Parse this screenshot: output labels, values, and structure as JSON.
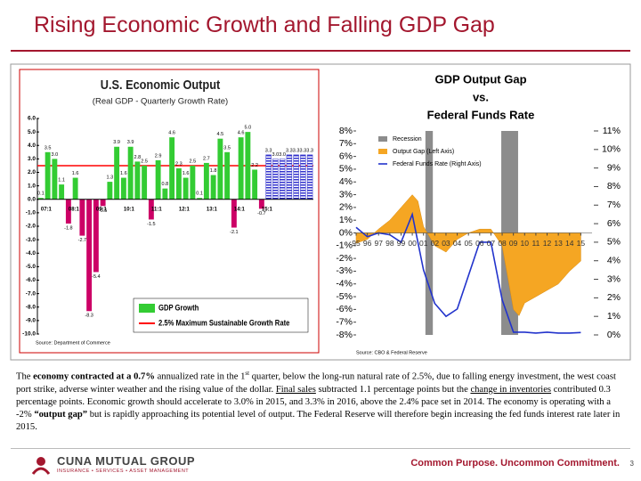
{
  "header": {
    "title": "Rising Economic Growth and Falling GDP Gap"
  },
  "chart_data": [
    {
      "type": "bar",
      "title": "U.S. Economic Output",
      "subtitle": "(Real GDP - Quarterly Growth Rate)",
      "source": "Source: Department of Commerce",
      "categories": [
        "07:1",
        null,
        null,
        null,
        "08:1",
        null,
        null,
        null,
        "09:1",
        null,
        null,
        null,
        "10:1",
        null,
        null,
        null,
        "11:1",
        null,
        null,
        null,
        "12:1",
        null,
        null,
        null,
        "13:1",
        null,
        null,
        null,
        "14:1",
        null,
        null,
        null,
        "15:1",
        null,
        null,
        null,
        null,
        null,
        null,
        null
      ],
      "series": [
        {
          "name": "GDP Growth",
          "color": "#33cc33",
          "negative_color": "#cc0066",
          "values": [
            0.1,
            3.5,
            3.0,
            1.1,
            -1.8,
            1.6,
            -2.7,
            -8.3,
            -5.4,
            -0.5,
            1.3,
            3.9,
            1.6,
            3.9,
            2.8,
            2.5,
            -1.5,
            2.9,
            0.8,
            4.6,
            2.3,
            1.6,
            2.5,
            0.1,
            2.7,
            1.8,
            4.5,
            3.5,
            -2.1,
            4.6,
            5.0,
            2.2,
            -0.7,
            null,
            null,
            null,
            null,
            null,
            null,
            null
          ],
          "value_labels": [
            "0.1",
            "3.5",
            "3.0",
            "1.1",
            "-1.8",
            "1.6",
            "-2.7",
            "-8.3",
            "-5.4",
            "-0.5",
            "1.3",
            "3.9",
            "1.6",
            "3.9",
            "2.8",
            "2.5",
            "-1.5",
            "2.9",
            "0.8",
            "4.6",
            "2.3",
            "1.6",
            "2.5",
            "0.1",
            "2.7",
            "1.8",
            "4.5",
            "3.5",
            "-2.1",
            "4.6",
            "5.0",
            "2.2",
            "-0.7",
            null,
            null,
            null,
            null,
            null,
            null,
            null
          ]
        },
        {
          "color": "#3333cc",
          "values": [
            null,
            null,
            null,
            null,
            null,
            null,
            null,
            null,
            null,
            null,
            null,
            null,
            null,
            null,
            null,
            null,
            null,
            null,
            null,
            null,
            null,
            null,
            null,
            null,
            null,
            null,
            null,
            null,
            null,
            null,
            null,
            null,
            null,
            3.3,
            3.0,
            3.0,
            3.3,
            3.3,
            3.3,
            3.3
          ],
          "value_labels": [
            null,
            null,
            null,
            null,
            null,
            null,
            null,
            null,
            null,
            null,
            null,
            null,
            null,
            null,
            null,
            null,
            null,
            null,
            null,
            null,
            null,
            null,
            null,
            null,
            null,
            null,
            null,
            null,
            null,
            null,
            null,
            null,
            null,
            "3.3",
            "3.0",
            "3.0",
            "3.3",
            "3.3",
            "3.3",
            "3.3"
          ]
        }
      ],
      "reference": {
        "name": "2.5% Maximum Sustainable Growth Rate",
        "value": 2.5,
        "color": "#ff0000"
      },
      "ylim": [
        -10,
        6
      ],
      "yticks": [
        {
          "value": 6,
          "label": "6.0"
        },
        {
          "value": 5,
          "label": "5.0"
        },
        {
          "value": 4,
          "label": "4.0"
        },
        {
          "value": 3,
          "label": "3.0"
        },
        {
          "value": 2,
          "label": "2.0"
        },
        {
          "value": 1,
          "label": "1.0"
        },
        {
          "value": 0,
          "label": "0.0"
        },
        {
          "value": -1,
          "label": "-1.0"
        },
        {
          "value": -2,
          "label": "-2.0"
        },
        {
          "value": -3,
          "label": "-3.0"
        },
        {
          "value": -4,
          "label": "-4.0"
        },
        {
          "value": -5,
          "label": "-5.0"
        },
        {
          "value": -6,
          "label": "-6.0"
        },
        {
          "value": -7,
          "label": "-7.0"
        },
        {
          "value": -8,
          "label": "-8.0"
        },
        {
          "value": -9,
          "label": "-9.0"
        },
        {
          "value": -10,
          "label": "-10.0"
        }
      ]
    },
    {
      "type": "combo",
      "title": [
        "GDP Output Gap",
        "vs.",
        "Federal Funds Rate"
      ],
      "source": "Source: CBO & Federal Reserve",
      "recession": {
        "name": "Recession",
        "color": "#8c8c8c",
        "spans": [
          [
            2001.17,
            2001.83
          ],
          [
            2007.92,
            2009.42
          ]
        ]
      },
      "series": [
        {
          "name": "Output Gap (Left Axis)",
          "type": "area",
          "color": "#f5a623",
          "x": [
            1995,
            1996,
            1997,
            1998,
            1999,
            2000,
            2000.5,
            2001,
            2002,
            2003,
            2004,
            2005,
            2006,
            2007,
            2008,
            2008.5,
            2009,
            2009.5,
            2010,
            2011,
            2012,
            2013,
            2014,
            2015
          ],
          "values": [
            -0.8,
            -0.5,
            0.3,
            1.0,
            2.0,
            3.0,
            2.5,
            0.5,
            -1.0,
            -1.5,
            -0.5,
            0.0,
            0.3,
            0.3,
            -1.0,
            -3.5,
            -6.0,
            -6.5,
            -5.5,
            -5.0,
            -4.5,
            -4.0,
            -3.0,
            -2.2
          ]
        },
        {
          "name": "Federal Funds Rate (Right Axis)",
          "type": "line",
          "axis": "y2",
          "color": "#2233cc",
          "x": [
            1995,
            1996,
            1997,
            1998,
            1999,
            2000,
            2001,
            2002,
            2003,
            2004,
            2005,
            2006,
            2007,
            2008,
            2009,
            2010,
            2011,
            2012,
            2013,
            2014,
            2015
          ],
          "values": [
            5.8,
            5.3,
            5.5,
            5.4,
            5.0,
            6.5,
            3.5,
            1.7,
            1.0,
            1.4,
            3.2,
            5.0,
            5.0,
            1.9,
            0.15,
            0.15,
            0.1,
            0.15,
            0.1,
            0.1,
            0.13
          ]
        }
      ],
      "xlim": [
        1995,
        2016
      ],
      "xticks": [
        {
          "value": 1995,
          "label": "95"
        },
        {
          "value": 1996,
          "label": "96"
        },
        {
          "value": 1997,
          "label": "97"
        },
        {
          "value": 1998,
          "label": "98"
        },
        {
          "value": 1999,
          "label": "99"
        },
        {
          "value": 2000,
          "label": "00"
        },
        {
          "value": 2001,
          "label": "01"
        },
        {
          "value": 2002,
          "label": "02"
        },
        {
          "value": 2003,
          "label": "03"
        },
        {
          "value": 2004,
          "label": "04"
        },
        {
          "value": 2005,
          "label": "05"
        },
        {
          "value": 2006,
          "label": "06"
        },
        {
          "value": 2007,
          "label": "07"
        },
        {
          "value": 2008,
          "label": "08"
        },
        {
          "value": 2009,
          "label": "09"
        },
        {
          "value": 2010,
          "label": "10"
        },
        {
          "value": 2011,
          "label": "11"
        },
        {
          "value": 2012,
          "label": "12"
        },
        {
          "value": 2013,
          "label": "13"
        },
        {
          "value": 2014,
          "label": "14"
        },
        {
          "value": 2015,
          "label": "15"
        }
      ],
      "ylim": [
        -8,
        8
      ],
      "yticks": [
        {
          "value": 8,
          "label": "8%"
        },
        {
          "value": 7,
          "label": "7%"
        },
        {
          "value": 6,
          "label": "6%"
        },
        {
          "value": 5,
          "label": "5%"
        },
        {
          "value": 4,
          "label": "4%"
        },
        {
          "value": 3,
          "label": "3%"
        },
        {
          "value": 2,
          "label": "2%"
        },
        {
          "value": 1,
          "label": "1%"
        },
        {
          "value": 0,
          "label": "0%"
        },
        {
          "value": -1,
          "label": "-1%"
        },
        {
          "value": -2,
          "label": "-2%"
        },
        {
          "value": -3,
          "label": "-3%"
        },
        {
          "value": -4,
          "label": "-4%"
        },
        {
          "value": -5,
          "label": "-5%"
        },
        {
          "value": -6,
          "label": "-6%"
        },
        {
          "value": -7,
          "label": "-7%"
        },
        {
          "value": -8,
          "label": "-8%"
        }
      ],
      "y2lim": [
        0,
        11
      ],
      "y2ticks": [
        {
          "value": 11,
          "label": "11%"
        },
        {
          "value": 10,
          "label": "10%"
        },
        {
          "value": 9,
          "label": "9%"
        },
        {
          "value": 8,
          "label": "8%"
        },
        {
          "value": 7,
          "label": "7%"
        },
        {
          "value": 6,
          "label": "6%"
        },
        {
          "value": 5,
          "label": "5%"
        },
        {
          "value": 4,
          "label": "4%"
        },
        {
          "value": 3,
          "label": "3%"
        },
        {
          "value": 2,
          "label": "2%"
        },
        {
          "value": 1,
          "label": "1%"
        },
        {
          "value": 0,
          "label": "0%"
        }
      ]
    }
  ],
  "body": {
    "runs": [
      {
        "text": "The "
      },
      {
        "text": "economy contracted at a 0.7%",
        "style": "bold"
      },
      {
        "text": " annualized rate in the 1"
      },
      {
        "text": "st",
        "style": "sup"
      },
      {
        "text": " quarter, below the long-run natural rate of 2.5%, due to falling energy investment, the west coast port strike, adverse winter weather and the rising value of the dollar.  "
      },
      {
        "text": "Final sales",
        "style": "underline"
      },
      {
        "text": " subtracted 1.1 percentage points but the "
      },
      {
        "text": "change in inventories",
        "style": "underline"
      },
      {
        "text": " contributed 0.3 percentage points.  Economic growth should accelerate to 3.0% in 2015, and 3.3% in 2016, above the 2.4% pace set in 2014. The economy is operating with a -2% "
      },
      {
        "text": "“output gap”",
        "style": "bold"
      },
      {
        "text": " but is rapidly approaching its potential level of output. The Federal Reserve will therefore begin increasing the fed funds interest rate later in 2015."
      }
    ]
  },
  "footer": {
    "company": "CUNA MUTUAL GROUP",
    "tagline": "INSURANCE • SERVICES • ASSET MANAGEMENT",
    "slogan": "Common Purpose. Uncommon Commitment.",
    "page": "3"
  }
}
